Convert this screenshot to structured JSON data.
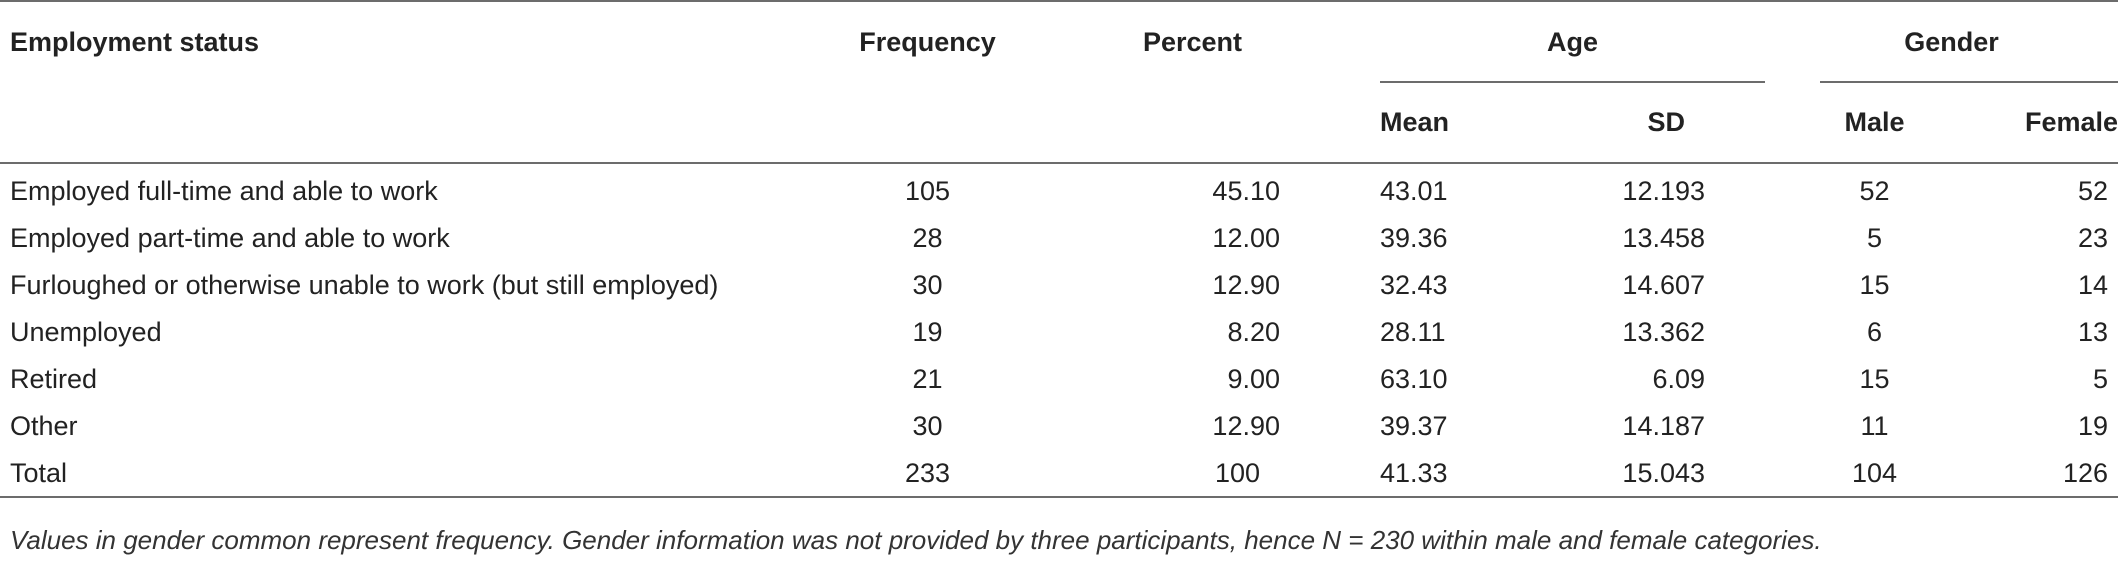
{
  "table": {
    "headers": {
      "employment_status": "Employment status",
      "frequency": "Frequency",
      "percent": "Percent",
      "age": "Age",
      "gender": "Gender",
      "mean": "Mean",
      "sd": "SD",
      "male": "Male",
      "female": "Female"
    },
    "rows": [
      {
        "status": "Employed full-time and able to work",
        "frequency": "105",
        "percent": "45.10",
        "mean": "43.01",
        "sd": "12.193",
        "male": "52",
        "female": "52"
      },
      {
        "status": "Employed part-time and able to work",
        "frequency": "28",
        "percent": "12.00",
        "mean": "39.36",
        "sd": "13.458",
        "male": "5",
        "female": "23"
      },
      {
        "status": "Furloughed or otherwise unable to work (but still employed)",
        "frequency": "30",
        "percent": "12.90",
        "mean": "32.43",
        "sd": "14.607",
        "male": "15",
        "female": "14"
      },
      {
        "status": "Unemployed",
        "frequency": "19",
        "percent": "8.20",
        "mean": "28.11",
        "sd": "13.362",
        "male": "6",
        "female": "13"
      },
      {
        "status": "Retired",
        "frequency": "21",
        "percent": "9.00",
        "mean": "63.10",
        "sd": "6.09",
        "male": "15",
        "female": "5"
      },
      {
        "status": "Other",
        "frequency": "30",
        "percent": "12.90",
        "mean": "39.37",
        "sd": "14.187",
        "male": "11",
        "female": "19"
      },
      {
        "status": "Total",
        "frequency": "233",
        "percent": "100",
        "mean": "41.33",
        "sd": "15.043",
        "male": "104",
        "female": "126"
      }
    ]
  },
  "footnote": "Values in gender common represent frequency. Gender information was not provided by three participants, hence N = 230 within male and female categories."
}
